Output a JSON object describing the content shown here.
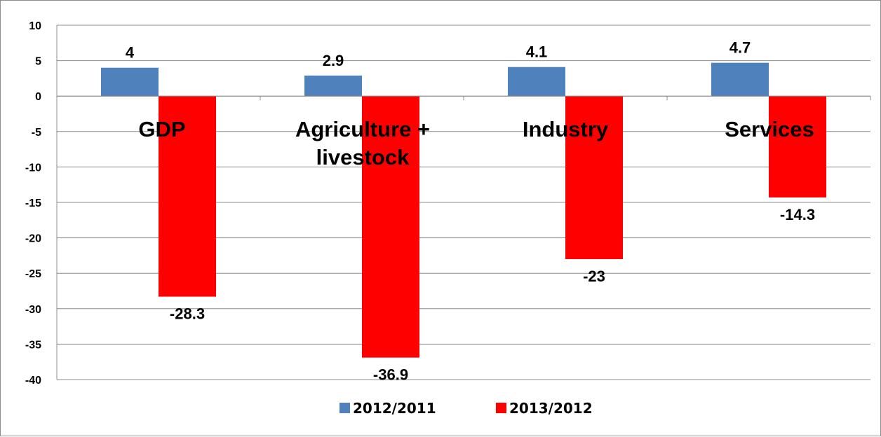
{
  "chart_data": {
    "type": "bar",
    "categories": [
      [
        "GDP"
      ],
      [
        "Agriculture +",
        "livestock"
      ],
      [
        "Industry"
      ],
      [
        "Services"
      ]
    ],
    "series": [
      {
        "name": "2012/2011",
        "color": "#4f81bd",
        "values": [
          4,
          2.9,
          4.1,
          4.7
        ],
        "labels": [
          "4",
          "2.9",
          "4.1",
          "4.7"
        ]
      },
      {
        "name": "2013/2012",
        "color": "#ff0000",
        "values": [
          -28.3,
          -36.9,
          -23,
          -14.3
        ],
        "labels": [
          "-28.3",
          "-36.9",
          "-23",
          "-14.3"
        ]
      }
    ],
    "ylim": [
      -40,
      10
    ],
    "yticks": [
      "10",
      "5",
      "0",
      "-5",
      "-10",
      "-15",
      "-20",
      "-25",
      "-30",
      "-35",
      "-40"
    ],
    "grid": true,
    "legend_position": "bottom"
  }
}
